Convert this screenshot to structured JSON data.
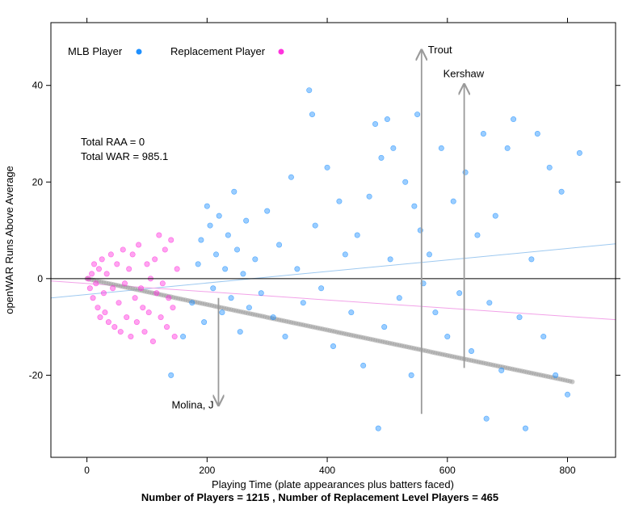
{
  "chart_data": {
    "type": "scatter",
    "title": "",
    "xlabel": "Playing Time (plate appearances plus batters faced)",
    "ylabel": "openWAR Runs Above Average",
    "footer": "Number of Players = 1215 , Number of Replacement Level Players = 465",
    "xlim": [
      -60,
      880
    ],
    "ylim": [
      -37,
      53
    ],
    "x_ticks": [
      0,
      200,
      400,
      600,
      800
    ],
    "y_ticks": [
      -20,
      0,
      20,
      40
    ],
    "grid": false,
    "legend_position": "top-left",
    "reference_line_y": 0,
    "legend": [
      {
        "label": "MLB Player",
        "color": "#1E90FF"
      },
      {
        "label": "Replacement Player",
        "color": "#FF33DD"
      }
    ],
    "stats_text": [
      "Total RAA = 0",
      "Total WAR = 985.1"
    ],
    "series": [
      {
        "name": "MLB Player",
        "color": "#1E90FF",
        "points": [
          [
            140,
            -20
          ],
          [
            160,
            -12
          ],
          [
            175,
            -5
          ],
          [
            185,
            3
          ],
          [
            190,
            8
          ],
          [
            195,
            -9
          ],
          [
            200,
            15
          ],
          [
            205,
            11
          ],
          [
            210,
            -2
          ],
          [
            215,
            5
          ],
          [
            220,
            13
          ],
          [
            225,
            -7
          ],
          [
            230,
            2
          ],
          [
            235,
            9
          ],
          [
            240,
            -4
          ],
          [
            245,
            18
          ],
          [
            250,
            6
          ],
          [
            255,
            -11
          ],
          [
            260,
            1
          ],
          [
            265,
            12
          ],
          [
            270,
            -6
          ],
          [
            280,
            4
          ],
          [
            290,
            -3
          ],
          [
            300,
            14
          ],
          [
            310,
            -8
          ],
          [
            320,
            7
          ],
          [
            330,
            -12
          ],
          [
            340,
            21
          ],
          [
            350,
            2
          ],
          [
            360,
            -5
          ],
          [
            370,
            39
          ],
          [
            375,
            34
          ],
          [
            380,
            11
          ],
          [
            390,
            -2
          ],
          [
            400,
            23
          ],
          [
            410,
            -14
          ],
          [
            420,
            16
          ],
          [
            430,
            5
          ],
          [
            440,
            -7
          ],
          [
            450,
            9
          ],
          [
            460,
            -18
          ],
          [
            470,
            17
          ],
          [
            480,
            32
          ],
          [
            485,
            -31
          ],
          [
            490,
            25
          ],
          [
            495,
            -10
          ],
          [
            500,
            33
          ],
          [
            505,
            4
          ],
          [
            510,
            27
          ],
          [
            520,
            -4
          ],
          [
            530,
            20
          ],
          [
            540,
            -20
          ],
          [
            545,
            15
          ],
          [
            550,
            34
          ],
          [
            555,
            10
          ],
          [
            560,
            -1
          ],
          [
            570,
            5
          ],
          [
            580,
            -7
          ],
          [
            590,
            27
          ],
          [
            600,
            -12
          ],
          [
            610,
            16
          ],
          [
            620,
            -3
          ],
          [
            630,
            22
          ],
          [
            640,
            -15
          ],
          [
            650,
            9
          ],
          [
            660,
            30
          ],
          [
            665,
            -29
          ],
          [
            670,
            -5
          ],
          [
            680,
            13
          ],
          [
            690,
            -19
          ],
          [
            700,
            27
          ],
          [
            710,
            33
          ],
          [
            720,
            -8
          ],
          [
            730,
            -31
          ],
          [
            740,
            4
          ],
          [
            750,
            30
          ],
          [
            760,
            -12
          ],
          [
            770,
            23
          ],
          [
            780,
            -20
          ],
          [
            790,
            18
          ],
          [
            800,
            -24
          ],
          [
            820,
            26
          ]
        ]
      },
      {
        "name": "Replacement Player",
        "color": "#FF33DD",
        "points": [
          [
            2,
            0
          ],
          [
            5,
            -2
          ],
          [
            8,
            1
          ],
          [
            10,
            -4
          ],
          [
            12,
            3
          ],
          [
            15,
            -1
          ],
          [
            18,
            -6
          ],
          [
            20,
            2
          ],
          [
            22,
            -8
          ],
          [
            25,
            4
          ],
          [
            28,
            -3
          ],
          [
            30,
            -7
          ],
          [
            33,
            1
          ],
          [
            36,
            -9
          ],
          [
            40,
            5
          ],
          [
            43,
            -2
          ],
          [
            46,
            -10
          ],
          [
            50,
            3
          ],
          [
            53,
            -5
          ],
          [
            56,
            -11
          ],
          [
            60,
            6
          ],
          [
            63,
            -1
          ],
          [
            66,
            -8
          ],
          [
            70,
            2
          ],
          [
            73,
            -12
          ],
          [
            76,
            5
          ],
          [
            80,
            -4
          ],
          [
            83,
            -9
          ],
          [
            86,
            7
          ],
          [
            90,
            -2
          ],
          [
            93,
            -6
          ],
          [
            96,
            -11
          ],
          [
            100,
            3
          ],
          [
            103,
            -7
          ],
          [
            106,
            0
          ],
          [
            110,
            -13
          ],
          [
            113,
            4
          ],
          [
            116,
            -3
          ],
          [
            120,
            9
          ],
          [
            123,
            -8
          ],
          [
            126,
            -1
          ],
          [
            130,
            6
          ],
          [
            133,
            -10
          ],
          [
            136,
            -4
          ],
          [
            140,
            8
          ],
          [
            143,
            -6
          ],
          [
            146,
            -12
          ],
          [
            150,
            2
          ]
        ]
      }
    ],
    "trend_lines": [
      {
        "name": "MLB Player",
        "color": "#9EC9F0",
        "x": [
          -60,
          880
        ],
        "y": [
          -4,
          7.2
        ]
      },
      {
        "name": "Replacement Player",
        "color": "#F2A2E8",
        "x": [
          -60,
          880
        ],
        "y": [
          -0.5,
          -8.5
        ]
      }
    ],
    "annotations": [
      {
        "label": "Trout",
        "x": 557,
        "y_from": -28,
        "y_to": 47.3
      },
      {
        "label": "Kershaw",
        "x": 628,
        "y_from": -18.5,
        "y_to": 40.2
      },
      {
        "label": "Molina, J",
        "x": 219,
        "y_from": -4,
        "y_to": -26.2
      }
    ]
  }
}
